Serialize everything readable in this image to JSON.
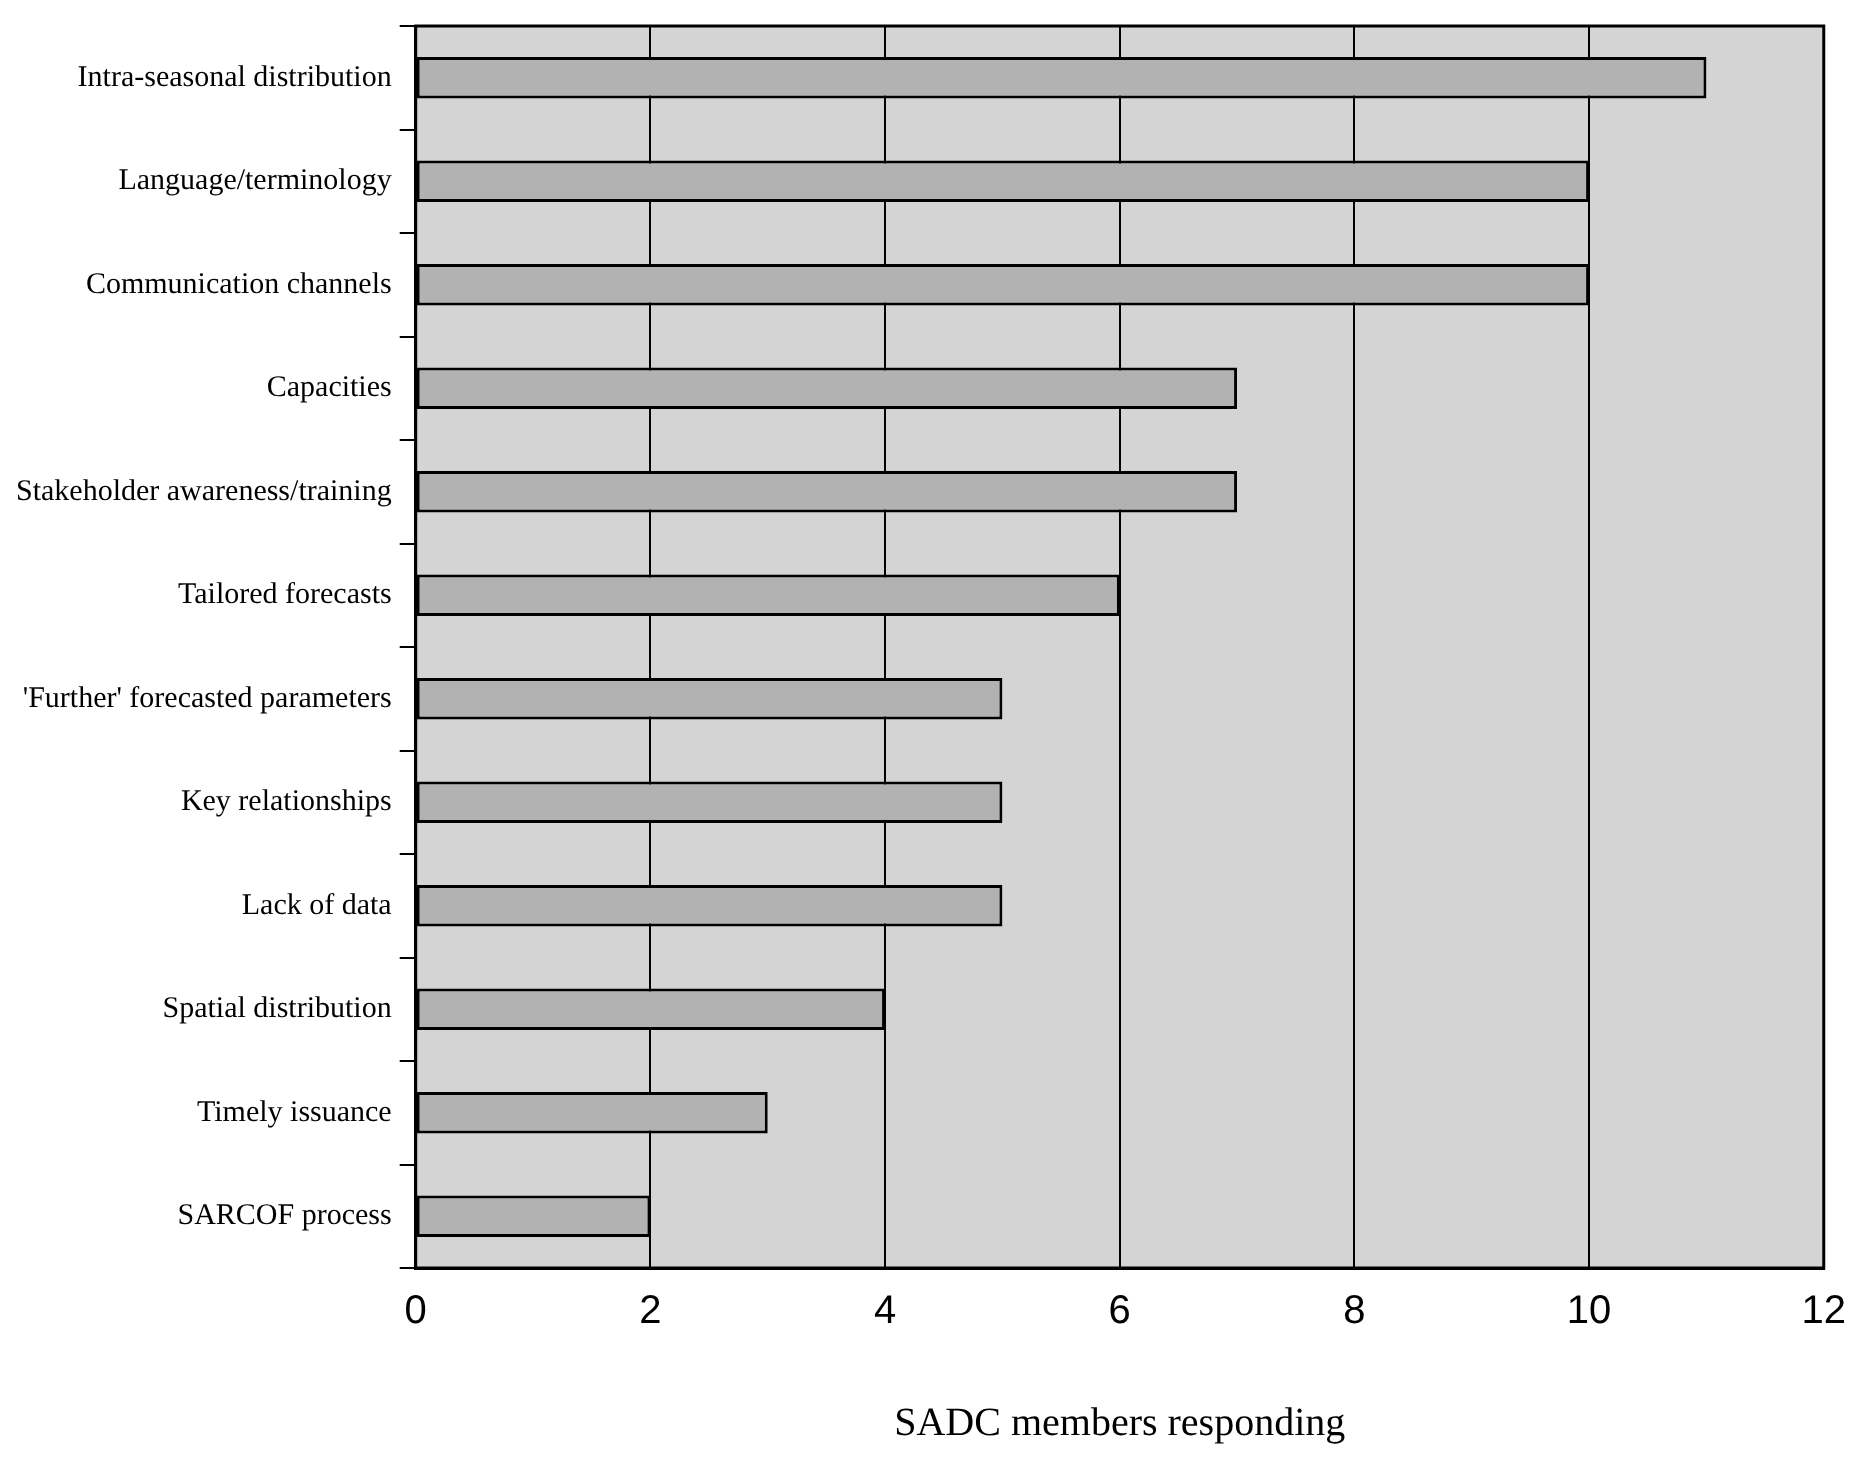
{
  "chart_data": {
    "type": "bar",
    "orientation": "horizontal",
    "xlabel": "SADC members responding",
    "categories": [
      "Intra-seasonal distribution",
      "Language/terminology",
      "Communication channels",
      "Capacities",
      "Stakeholder awareness/training",
      "Tailored forecasts",
      "'Further' forecasted parameters",
      "Key relationships",
      "Lack of data",
      "Spatial distribution",
      "Timely issuance",
      "SARCOF process"
    ],
    "values": [
      11,
      10,
      10,
      7,
      7,
      6,
      5,
      5,
      5,
      4,
      3,
      2
    ],
    "color": "#b2b2b2",
    "xlim": [
      0,
      12
    ],
    "xticks": [
      0,
      2,
      4,
      6,
      8,
      10,
      12
    ],
    "grid": "x",
    "legend": false
  }
}
